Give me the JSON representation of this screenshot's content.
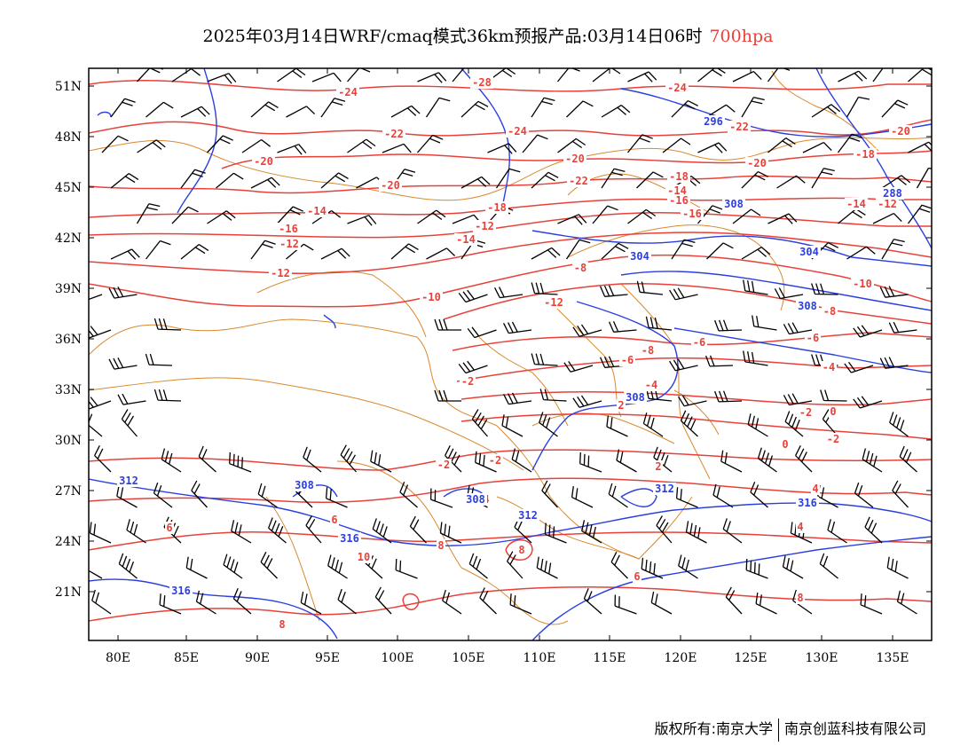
{
  "title": {
    "main": "2025年03月14日WRF/cmaq模式36km预报产品:03月14日06时",
    "level": "700hpa",
    "level_color": "#e8413a"
  },
  "footer": {
    "copyright": "版权所有:南京大学",
    "company": "南京创蓝科技有限公司"
  },
  "colors": {
    "temperature": "#e8413a",
    "height": "#2b3fe0",
    "boundary": "#d9892e",
    "wind": "#000000"
  },
  "axes": {
    "lon_ticks": [
      "80E",
      "85E",
      "90E",
      "95E",
      "100E",
      "105E",
      "110E",
      "115E",
      "120E",
      "125E",
      "130E",
      "135E"
    ],
    "lat_ticks": [
      "51N",
      "48N",
      "45N",
      "42N",
      "39N",
      "36N",
      "33N",
      "30N",
      "27N",
      "24N",
      "21N"
    ]
  },
  "temperature_labels": [
    "-24",
    "-28",
    "-24",
    "-22",
    "-24",
    "-22",
    "-20",
    "-20",
    "-20",
    "-22",
    "-20",
    "-18",
    "-20",
    "-18",
    "-12",
    "-14",
    "-12",
    "-16",
    "-10",
    "-16",
    "-14",
    "-18",
    "-16",
    "-14",
    "-12",
    "-14",
    "-8",
    "-12",
    "-10",
    "-8",
    "-12",
    "-6",
    "-6",
    "-8",
    "-6",
    "-4",
    "-2",
    "-4",
    "-2",
    "0",
    "-2",
    "-2",
    "0",
    "2",
    "-2",
    "2",
    "4",
    "4",
    "6",
    "4",
    "6",
    "8",
    "10",
    "6",
    "8",
    "8",
    "8",
    "10"
  ],
  "height_labels": [
    "296",
    "288",
    "308",
    "304",
    "304",
    "308",
    "308",
    "312",
    "308",
    "308",
    "312",
    "312",
    "316",
    "316",
    "316"
  ],
  "wind_barb_samples": [
    "northwesterly",
    "westerly",
    "southwesterly"
  ]
}
